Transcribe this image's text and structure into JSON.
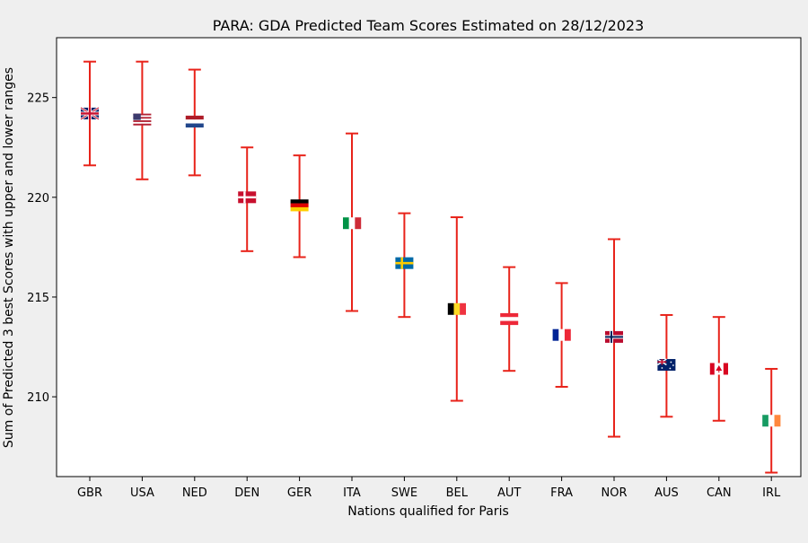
{
  "chart_data": {
    "type": "errorbar",
    "title": "PARA: GDA Predicted Team Scores Estimated on 28/12/2023",
    "xlabel": "Nations qualified for Paris",
    "ylabel": "Sum of Predicted 3 best Scores with upper and lower ranges",
    "ylim": [
      206,
      228
    ],
    "yticks": [
      210,
      215,
      220,
      225
    ],
    "grid": false,
    "error_bar_color": "#e8231a",
    "categories": [
      "GBR",
      "USA",
      "NED",
      "DEN",
      "GER",
      "ITA",
      "SWE",
      "BEL",
      "AUT",
      "FRA",
      "NOR",
      "AUS",
      "CAN",
      "IRL"
    ],
    "values": [
      224.2,
      223.9,
      223.8,
      220.0,
      219.6,
      218.7,
      216.7,
      214.4,
      213.9,
      213.1,
      213.0,
      211.6,
      211.4,
      208.8
    ],
    "upper": [
      226.8,
      226.8,
      226.4,
      222.5,
      222.1,
      223.2,
      219.2,
      219.0,
      216.5,
      215.7,
      217.9,
      214.1,
      214.0,
      211.4
    ],
    "lower": [
      221.6,
      220.9,
      221.1,
      217.3,
      217.0,
      214.3,
      214.0,
      209.8,
      211.3,
      210.5,
      208.0,
      209.0,
      208.8,
      206.2
    ],
    "markers": [
      "flag-gbr-icon",
      "flag-usa-icon",
      "flag-ned-icon",
      "flag-den-icon",
      "flag-ger-icon",
      "flag-ita-icon",
      "flag-swe-icon",
      "flag-bel-icon",
      "flag-aut-icon",
      "flag-fra-icon",
      "flag-nor-icon",
      "flag-aus-icon",
      "flag-can-icon",
      "flag-irl-icon"
    ]
  }
}
